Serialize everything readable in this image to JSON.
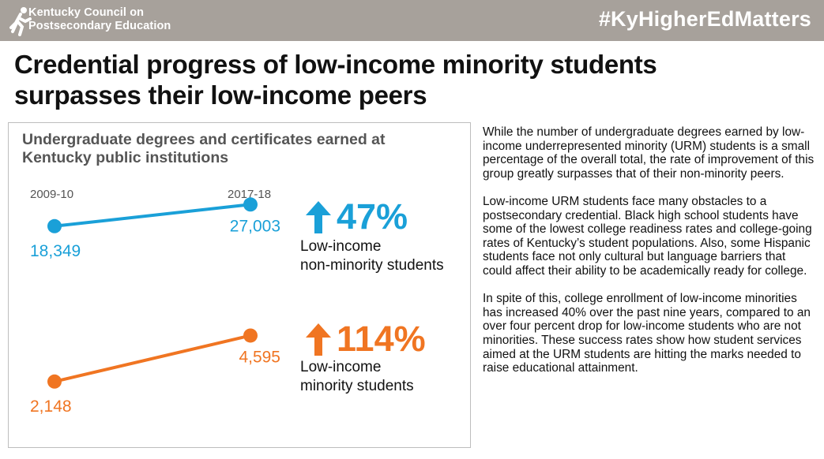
{
  "header": {
    "org_line1": "Kentucky Council on",
    "org_line2": "Postsecondary Education",
    "hashtag": "#KyHigherEdMatters",
    "logo_icon": "running-figure-icon"
  },
  "headline": {
    "line1": "Credential progress of low-income minority students",
    "line2": "surpasses their low-income peers"
  },
  "colors": {
    "topbar": "#a7a19b",
    "blue": "#1aa0d8",
    "orange": "#f07522"
  },
  "chart_data": {
    "type": "line",
    "title": "Undergraduate degrees and certificates earned at Kentucky public institutions",
    "title_line1": "Undergraduate degrees and certificates earned at",
    "title_line2": "Kentucky public institutions",
    "x": [
      "2009-10",
      "2017-18"
    ],
    "series": [
      {
        "name": "Low-income non-minority students",
        "name_line1": "Low-income",
        "name_line2": "non-minority students",
        "values": [
          18349,
          27003
        ],
        "labels": [
          "18,349",
          "27,003"
        ],
        "change": "47%",
        "color": "#1aa0d8"
      },
      {
        "name": "Low-income minority students",
        "name_line1": "Low-income",
        "name_line2": "minority students",
        "values": [
          2148,
          4595
        ],
        "labels": [
          "2,148",
          "4,595"
        ],
        "change": "114%",
        "color": "#f07522"
      }
    ],
    "grid": false,
    "legend": "right"
  },
  "body": {
    "p1": "While the number of undergraduate degrees earned by low-income underrepresented minority (URM) students is a small percentage of the overall total, the rate of improvement of this group greatly surpasses that of their non-minority peers.",
    "p2": "Low-income URM students face many obstacles to a postsecondary credential. Black high school students have some of the lowest college readiness rates and college-going rates of Kentucky’s student populations. Also, some Hispanic students face not only cultural but language barriers that could affect their ability to be academically ready for college.",
    "p3": "In spite of this, college enrollment of low-income minorities has increased 40% over the past nine years, compared to an over four percent drop for low-income students who are not minorities. These success rates show how student services aimed at the URM students are hitting the marks needed to raise educational attainment."
  }
}
